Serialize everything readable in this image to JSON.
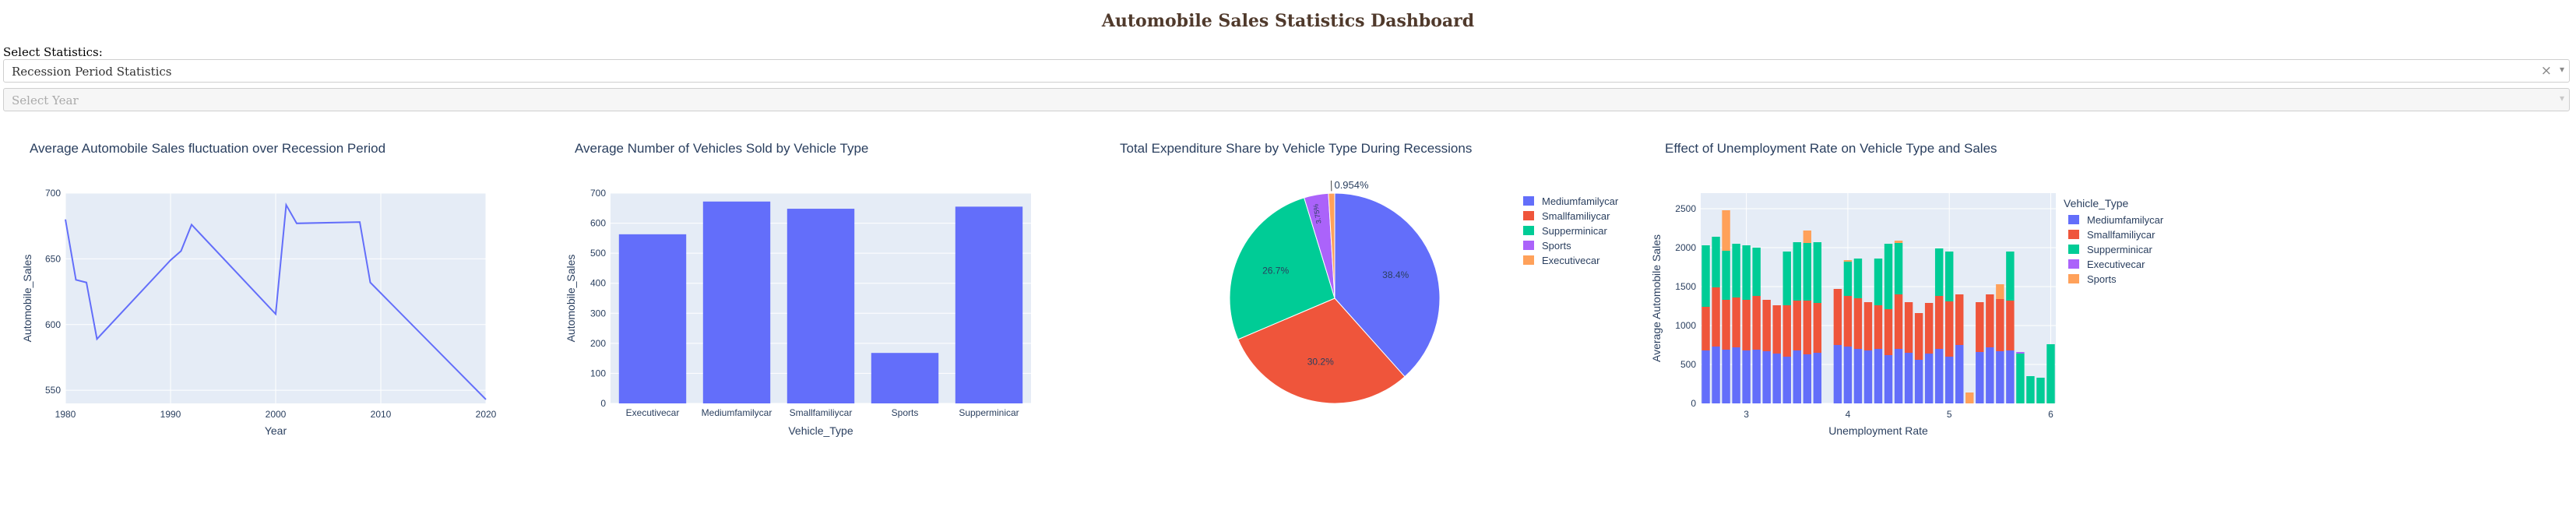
{
  "page": {
    "title": "Automobile Sales Statistics Dashboard",
    "select_label": "Select Statistics:",
    "stat_dropdown": {
      "value": "Recession Period Statistics",
      "clear": "×",
      "arrow": "▾"
    },
    "year_dropdown": {
      "placeholder": "Select Year",
      "arrow": "▾"
    }
  },
  "colors": {
    "c0": "#636efa",
    "c1": "#ef553b",
    "c2": "#00cc96",
    "c3": "#ab63fa",
    "c4": "#ffa15a",
    "plot_bg": "#e5ecf6"
  },
  "chart_data": [
    {
      "type": "line",
      "title": "Average Automobile Sales fluctuation over Recession Period",
      "xlabel": "Year",
      "ylabel": "Automobile_Sales",
      "xlim": [
        1980,
        2020
      ],
      "ylim": [
        540,
        700
      ],
      "xticks": [
        1980,
        1990,
        2000,
        2010,
        2020
      ],
      "yticks": [
        550,
        600,
        650,
        700
      ],
      "x": [
        1980,
        1981,
        1982,
        1983,
        1990,
        1991,
        1992,
        2000,
        2001,
        2002,
        2008,
        2009,
        2020
      ],
      "y": [
        680,
        634,
        632,
        589,
        649,
        656,
        676,
        608,
        691,
        677,
        678,
        632,
        543
      ]
    },
    {
      "type": "bar",
      "title": "Average Number of Vehicles Sold by Vehicle Type",
      "xlabel": "Vehicle_Type",
      "ylabel": "Automobile_Sales",
      "ylim": [
        0,
        700
      ],
      "yticks": [
        0,
        100,
        200,
        300,
        400,
        500,
        600,
        700
      ],
      "categories": [
        "Executivecar",
        "Mediumfamilycar",
        "Smallfamiliycar",
        "Sports",
        "Supperminicar"
      ],
      "values": [
        563,
        672,
        648,
        168,
        655
      ]
    },
    {
      "type": "pie",
      "title": "Total Expenditure Share by Vehicle Type During Recessions",
      "labels": [
        "Mediumfamilycar",
        "Smallfamiliycar",
        "Supperminicar",
        "Sports",
        "Executivecar"
      ],
      "values": [
        38.4,
        30.2,
        26.7,
        3.75,
        0.954
      ],
      "text_labels": [
        "38.4%",
        "30.2%",
        "26.7%",
        "3.75%",
        "0.954%"
      ],
      "legend": "right"
    },
    {
      "type": "bar",
      "stacked": true,
      "title": "Effect of Unemployment Rate on Vehicle Type and Sales",
      "xlabel": "Unemployment Rate",
      "ylabel": "Average Automobile Sales",
      "legend_title": "Vehicle_Type",
      "xlim": [
        2.55,
        6.05
      ],
      "xticks": [
        3,
        4,
        5,
        6
      ],
      "ylim": [
        0,
        2700
      ],
      "yticks": [
        0,
        500,
        1000,
        1500,
        2000,
        2500
      ],
      "series": [
        {
          "name": "Mediumfamilycar",
          "points": [
            [
              2.6,
              680
            ],
            [
              2.7,
              730
            ],
            [
              2.8,
              690
            ],
            [
              2.9,
              720
            ],
            [
              3.0,
              680
            ],
            [
              3.1,
              690
            ],
            [
              3.2,
              670
            ],
            [
              3.3,
              640
            ],
            [
              3.4,
              600
            ],
            [
              3.5,
              680
            ],
            [
              3.6,
              630
            ],
            [
              3.7,
              650
            ],
            [
              3.9,
              750
            ],
            [
              4.0,
              730
            ],
            [
              4.1,
              700
            ],
            [
              4.2,
              680
            ],
            [
              4.3,
              700
            ],
            [
              4.4,
              620
            ],
            [
              4.5,
              700
            ],
            [
              4.6,
              650
            ],
            [
              4.7,
              560
            ],
            [
              4.8,
              640
            ],
            [
              4.9,
              700
            ],
            [
              5.0,
              600
            ],
            [
              5.1,
              750
            ],
            [
              5.3,
              660
            ],
            [
              5.4,
              720
            ],
            [
              5.5,
              670
            ],
            [
              5.6,
              680
            ]
          ]
        },
        {
          "name": "Smallfamiliycar",
          "points": [
            [
              2.6,
              560
            ],
            [
              2.7,
              760
            ],
            [
              2.8,
              640
            ],
            [
              2.9,
              640
            ],
            [
              3.0,
              650
            ],
            [
              3.1,
              690
            ],
            [
              3.2,
              660
            ],
            [
              3.3,
              620
            ],
            [
              3.4,
              660
            ],
            [
              3.5,
              640
            ],
            [
              3.6,
              690
            ],
            [
              3.7,
              640
            ],
            [
              3.9,
              720
            ],
            [
              4.0,
              650
            ],
            [
              4.1,
              650
            ],
            [
              4.2,
              620
            ],
            [
              4.3,
              560
            ],
            [
              4.4,
              590
            ],
            [
              4.5,
              700
            ],
            [
              4.6,
              650
            ],
            [
              4.7,
              600
            ],
            [
              4.8,
              650
            ],
            [
              4.9,
              680
            ],
            [
              5.0,
              710
            ],
            [
              5.1,
              650
            ],
            [
              5.3,
              640
            ],
            [
              5.4,
              680
            ],
            [
              5.5,
              670
            ],
            [
              5.6,
              640
            ]
          ]
        },
        {
          "name": "Supperminicar",
          "points": [
            [
              2.6,
              790
            ],
            [
              2.7,
              650
            ],
            [
              2.8,
              630
            ],
            [
              2.9,
              690
            ],
            [
              3.0,
              700
            ],
            [
              3.1,
              620
            ],
            [
              3.4,
              690
            ],
            [
              3.5,
              750
            ],
            [
              3.6,
              740
            ],
            [
              3.7,
              780
            ],
            [
              4.0,
              440
            ],
            [
              4.1,
              510
            ],
            [
              4.3,
              600
            ],
            [
              4.4,
              840
            ],
            [
              4.5,
              660
            ],
            [
              4.9,
              610
            ],
            [
              5.0,
              640
            ],
            [
              5.6,
              630
            ],
            [
              5.7,
              640
            ],
            [
              5.8,
              350
            ],
            [
              5.9,
              330
            ],
            [
              6.0,
              760
            ]
          ]
        },
        {
          "name": "Executivecar",
          "points": [
            [
              5.7,
              20
            ]
          ]
        },
        {
          "name": "Sports",
          "points": [
            [
              2.8,
              520
            ],
            [
              3.6,
              160
            ],
            [
              4.5,
              30
            ],
            [
              5.5,
              190
            ],
            [
              5.2,
              140
            ],
            [
              4.0,
              20
            ]
          ]
        }
      ]
    }
  ]
}
